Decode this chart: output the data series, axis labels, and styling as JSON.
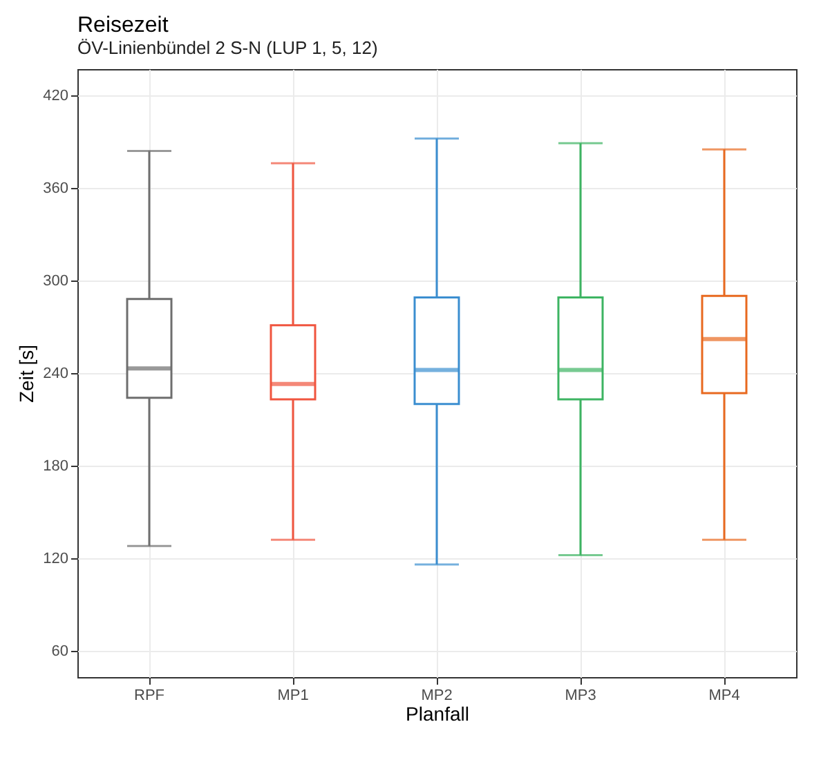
{
  "chart_data": {
    "type": "box",
    "title": "Reisezeit",
    "subtitle": "ÖV-Linienbündel 2 S-N (LUP 1, 5, 12)",
    "xlabel": "Planfall",
    "ylabel": "Zeit [s]",
    "categories": [
      "RPF",
      "MP1",
      "MP2",
      "MP3",
      "MP4"
    ],
    "colors": [
      "#6e6e6e",
      "#f0553f",
      "#3b8ed0",
      "#3db462",
      "#e8691f"
    ],
    "boxes": [
      {
        "low": 128,
        "q1": 224,
        "median": 243,
        "q3": 288,
        "high": 384
      },
      {
        "low": 132,
        "q1": 223,
        "median": 233,
        "q3": 271,
        "high": 376
      },
      {
        "low": 116,
        "q1": 220,
        "median": 242,
        "q3": 289,
        "high": 392
      },
      {
        "low": 122,
        "q1": 223,
        "median": 242,
        "q3": 289,
        "high": 389
      },
      {
        "low": 132,
        "q1": 227,
        "median": 262,
        "q3": 290,
        "high": 385
      }
    ],
    "ylim": [
      43,
      437
    ],
    "yticks": [
      60,
      120,
      180,
      240,
      300,
      360,
      420
    ],
    "grid": true,
    "legend": false
  }
}
